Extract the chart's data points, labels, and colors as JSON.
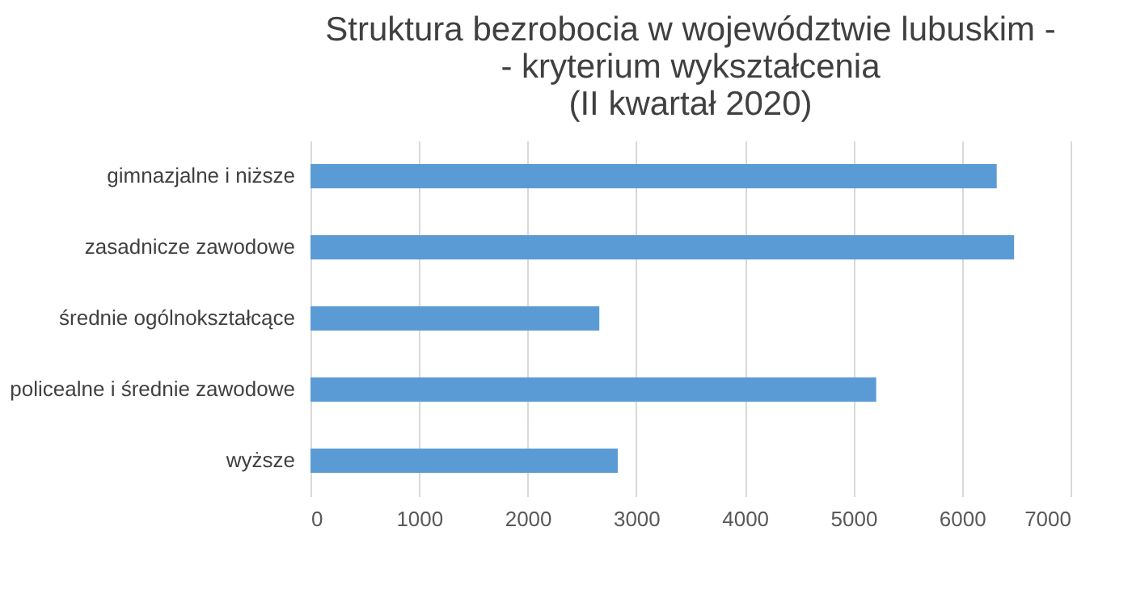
{
  "chart_data": {
    "type": "bar",
    "orientation": "horizontal",
    "title": [
      "Struktura bezrobocia w województwie lubuskim -",
      "- kryterium wykształcenia",
      "(II kwartał 2020)"
    ],
    "categories": [
      "gimnazjalne i niższe",
      "zasadnicze zawodowe",
      "średnie ogólnokształcące",
      "policealne i średnie zawodowe",
      "wyższe"
    ],
    "values": [
      6320,
      6480,
      2660,
      5210,
      2830
    ],
    "color": "#5b9bd5",
    "xlim": [
      0,
      7000
    ],
    "xticks": [
      0,
      1000,
      2000,
      3000,
      4000,
      5000,
      6000,
      7000
    ],
    "grid": "x"
  }
}
